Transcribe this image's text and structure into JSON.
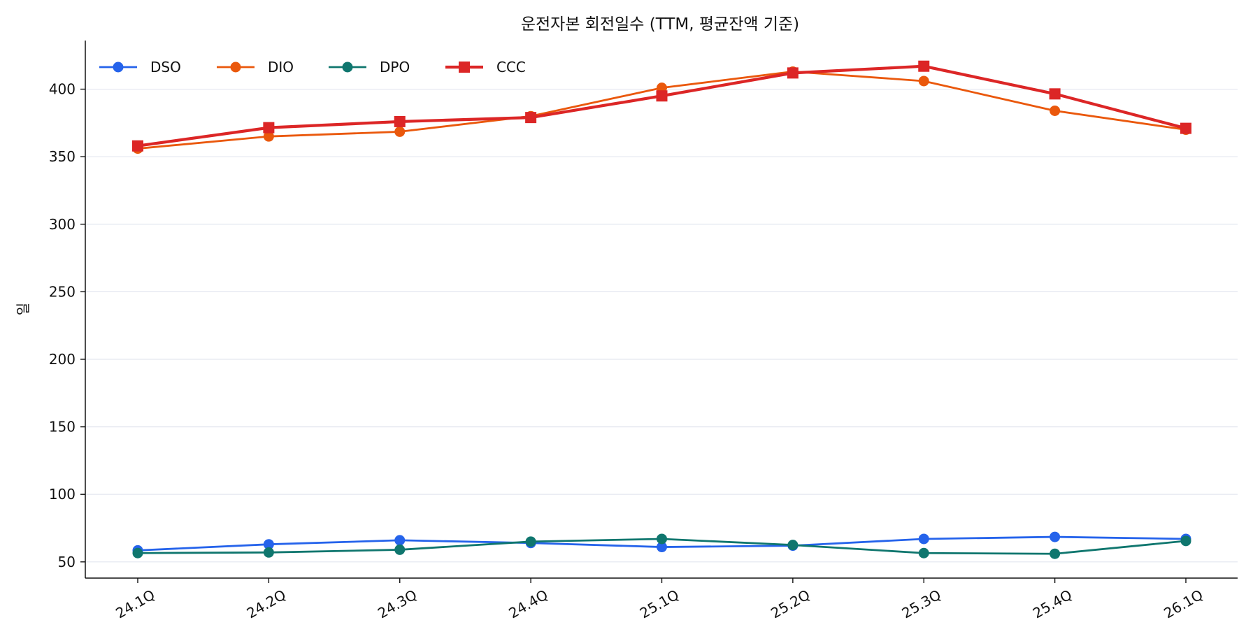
{
  "chart_data": {
    "type": "line",
    "title": "운전자본 회전일수 (TTM, 평균잔액 기준)",
    "xlabel": "",
    "ylabel": "일",
    "categories": [
      "24.1Q",
      "24.2Q",
      "24.3Q",
      "24.4Q",
      "25.1Q",
      "25.2Q",
      "25.3Q",
      "25.4Q",
      "26.1Q"
    ],
    "ylim": [
      38,
      436
    ],
    "yticks": [
      50,
      100,
      150,
      200,
      250,
      300,
      350,
      400
    ],
    "grid": "horizontal",
    "legend_position": "top-left",
    "series": [
      {
        "name": "DSO",
        "color": "#2563eb",
        "marker": "circle",
        "values": [
          58.5,
          63,
          66,
          64,
          61,
          62,
          67,
          68.5,
          67
        ]
      },
      {
        "name": "DIO",
        "color": "#ea580c",
        "marker": "circle",
        "values": [
          356,
          365,
          368.5,
          380,
          401,
          413,
          406,
          384,
          370
        ]
      },
      {
        "name": "DPO",
        "color": "#0f766e",
        "marker": "circle",
        "values": [
          56.5,
          57,
          59,
          65,
          67,
          62.5,
          56.5,
          56,
          65.5
        ]
      },
      {
        "name": "CCC",
        "color": "#dc2626",
        "marker": "square",
        "values": [
          358,
          371.5,
          376,
          379,
          395,
          412,
          417,
          396.5,
          371
        ]
      }
    ]
  }
}
